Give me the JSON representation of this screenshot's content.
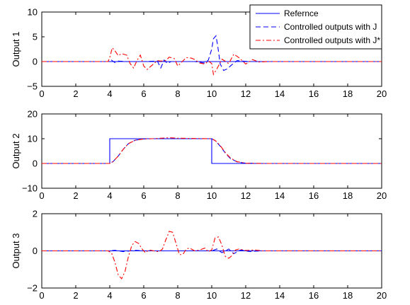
{
  "chart_data": [
    {
      "type": "line",
      "ylabel": "Output 1",
      "xlim": [
        0,
        20
      ],
      "ylim": [
        -5,
        10
      ],
      "xticks": [
        0,
        2,
        4,
        6,
        8,
        10,
        12,
        14,
        16,
        18,
        20
      ],
      "yticks": [
        -5,
        0,
        5,
        10
      ],
      "grid": false,
      "legend_position": "top-right",
      "series": [
        {
          "name": "Refernce",
          "color": "#0000ff",
          "dash": "solid",
          "x": [
            0,
            20
          ],
          "y": [
            0,
            0
          ]
        },
        {
          "name": "Controlled outputs with J",
          "color": "#0000ff",
          "dash": "dashed",
          "x": [
            0,
            4.0,
            4.1,
            4.3,
            4.5,
            5.0,
            6.0,
            6.8,
            7.0,
            7.2,
            7.4,
            7.6,
            8.0,
            9.0,
            9.6,
            9.8,
            10.0,
            10.1,
            10.25,
            10.35,
            10.5,
            10.7,
            10.9,
            11.2,
            11.5,
            11.8,
            12.2,
            13.0,
            20
          ],
          "y": [
            0,
            0,
            0.3,
            -0.2,
            0.1,
            0,
            0,
            0.1,
            -1.3,
            0.3,
            -0.4,
            0,
            0,
            0,
            -0.3,
            0.3,
            2.5,
            4.6,
            5.2,
            3.2,
            -0.5,
            -1.8,
            -1.5,
            -0.6,
            0.2,
            0.1,
            0,
            0,
            0
          ]
        },
        {
          "name": "Controlled outputs with J*",
          "color": "#ff0000",
          "dash": "dashdot",
          "x": [
            0,
            3.9,
            4.0,
            4.15,
            4.3,
            4.5,
            4.7,
            5.0,
            5.2,
            5.4,
            5.6,
            5.8,
            6.0,
            6.2,
            6.5,
            6.8,
            7.0,
            7.3,
            7.5,
            7.8,
            8.0,
            8.5,
            8.8,
            9.0,
            9.3,
            9.6,
            9.8,
            10.0,
            10.1,
            10.3,
            10.6,
            11.0,
            11.3,
            11.6,
            12.0,
            12.4,
            12.8,
            13.3,
            20
          ],
          "y": [
            0,
            0,
            0.8,
            2.8,
            2.2,
            1.2,
            1.6,
            1.3,
            -0.4,
            -1.3,
            0.2,
            1.3,
            -0.9,
            -1.6,
            -0.7,
            0.2,
            0.1,
            0.2,
            0.9,
            0.6,
            -0.9,
            0.8,
            0.7,
            0.4,
            -0.3,
            -0.5,
            0.1,
            -0.4,
            -2.6,
            -1.5,
            0.5,
            -0.4,
            1.5,
            0.8,
            -0.5,
            0.4,
            -0.1,
            0,
            0
          ]
        }
      ]
    },
    {
      "type": "line",
      "ylabel": "Output 2",
      "xlim": [
        0,
        20
      ],
      "ylim": [
        -10,
        20
      ],
      "xticks": [
        0,
        2,
        4,
        6,
        8,
        10,
        12,
        14,
        16,
        18,
        20
      ],
      "yticks": [
        -10,
        0,
        10,
        20
      ],
      "grid": false,
      "series": [
        {
          "name": "Refernce",
          "color": "#0000ff",
          "dash": "solid",
          "x": [
            0,
            4.0,
            4.0,
            10.0,
            10.0,
            20
          ],
          "y": [
            0,
            0,
            10,
            10,
            0,
            0
          ]
        },
        {
          "name": "Controlled outputs with J",
          "color": "#0000ff",
          "dash": "dashed",
          "x": [
            0,
            4.0,
            4.2,
            4.5,
            4.8,
            5.1,
            5.5,
            6.0,
            6.5,
            7.0,
            8.0,
            9.0,
            10.0,
            10.2,
            10.5,
            10.8,
            11.1,
            11.5,
            12.0,
            13.0,
            20
          ],
          "y": [
            0,
            0,
            0.8,
            3.0,
            5.8,
            8.0,
            9.4,
            9.9,
            10.0,
            10.0,
            10.0,
            10.0,
            10.0,
            9.2,
            7.0,
            4.2,
            2.0,
            0.6,
            0.1,
            0,
            0
          ]
        },
        {
          "name": "Controlled outputs with J*",
          "color": "#ff0000",
          "dash": "dashdot",
          "x": [
            0,
            4.0,
            4.2,
            4.5,
            4.8,
            5.1,
            5.5,
            6.0,
            6.5,
            7.0,
            7.5,
            8.0,
            9.0,
            10.0,
            10.2,
            10.5,
            10.8,
            11.1,
            11.5,
            12.0,
            13.0,
            20
          ],
          "y": [
            0,
            0,
            0.8,
            3.0,
            5.8,
            8.0,
            9.4,
            9.9,
            10.0,
            10.2,
            10.4,
            10.2,
            10.1,
            10.0,
            9.3,
            7.2,
            4.4,
            2.2,
            0.7,
            0.1,
            0,
            0
          ]
        }
      ]
    },
    {
      "type": "line",
      "ylabel": "Output 3",
      "xlim": [
        0,
        20
      ],
      "ylim": [
        -2,
        2
      ],
      "xticks": [
        0,
        2,
        4,
        6,
        8,
        10,
        12,
        14,
        16,
        18,
        20
      ],
      "yticks": [
        -2,
        0,
        2
      ],
      "grid": false,
      "series": [
        {
          "name": "Refernce",
          "color": "#0000ff",
          "dash": "solid",
          "x": [
            0,
            20
          ],
          "y": [
            0,
            0
          ]
        },
        {
          "name": "Controlled outputs with J",
          "color": "#0000ff",
          "dash": "dashed",
          "x": [
            0,
            4.0,
            4.3,
            4.8,
            5.5,
            6.0,
            10.0,
            10.3,
            10.6,
            11.0,
            11.3,
            11.7,
            12.2,
            13.0,
            20
          ],
          "y": [
            0,
            0,
            0.03,
            -0.04,
            0.03,
            0,
            0,
            0.1,
            -0.1,
            0.1,
            -0.15,
            0.05,
            -0.03,
            0,
            0
          ]
        },
        {
          "name": "Controlled outputs with J*",
          "color": "#ff0000",
          "dash": "dashdot",
          "x": [
            0,
            3.9,
            4.1,
            4.3,
            4.5,
            4.7,
            4.9,
            5.1,
            5.3,
            5.5,
            5.7,
            5.9,
            6.1,
            6.3,
            6.6,
            6.9,
            7.1,
            7.3,
            7.5,
            7.7,
            7.9,
            8.1,
            8.3,
            8.5,
            8.7,
            9.0,
            9.3,
            9.6,
            9.8,
            10.0,
            10.2,
            10.4,
            10.6,
            10.8,
            11.0,
            11.2,
            11.4,
            11.6,
            12.0,
            12.5,
            13.0,
            20
          ],
          "y": [
            0,
            0,
            -0.1,
            -0.6,
            -1.3,
            -1.5,
            -1.1,
            -0.3,
            0.3,
            0.5,
            0.4,
            0.1,
            -0.1,
            0.05,
            0.0,
            -0.05,
            0.1,
            0.6,
            1.05,
            1.0,
            0.4,
            -0.2,
            -0.2,
            0.1,
            0.15,
            0.0,
            0.05,
            0.15,
            -0.05,
            0.05,
            0.7,
            0.75,
            0.3,
            -0.3,
            -0.4,
            -0.25,
            0.05,
            0.1,
            0.02,
            0.05,
            0,
            0
          ]
        }
      ]
    }
  ]
}
